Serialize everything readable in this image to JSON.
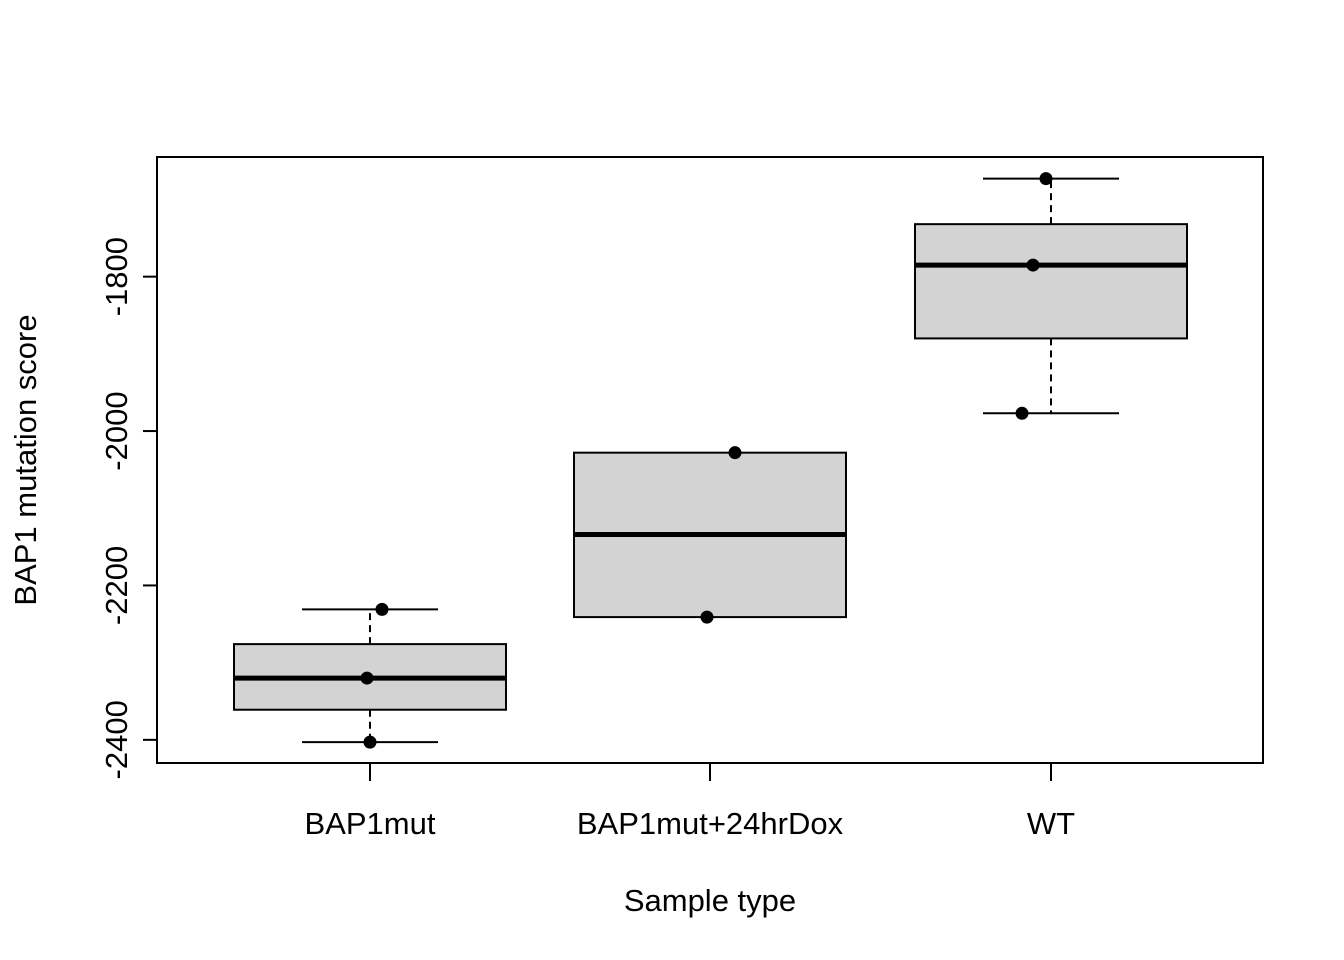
{
  "chart_data": {
    "type": "boxplot",
    "title": "",
    "xlabel": "Sample type",
    "ylabel": "BAP1 mutation score",
    "ylim": [
      -2430,
      -1645
    ],
    "y_ticks": [
      -2400,
      -2200,
      -2000,
      -1800
    ],
    "y_tick_labels": [
      "-2400",
      "-2200",
      "-2000",
      "-1800"
    ],
    "grid": false,
    "categories": [
      "BAP1mut",
      "BAP1mut+24hrDox",
      "WT"
    ],
    "boxes": [
      {
        "category": "BAP1mut",
        "whisker_low": -2403,
        "q1": -2361,
        "median": -2320,
        "q3": -2276,
        "whisker_high": -2231,
        "points": [
          -2231,
          -2320,
          -2403
        ]
      },
      {
        "category": "BAP1mut+24hrDox",
        "whisker_low": -2241,
        "q1": -2241,
        "median": -2134,
        "q3": -2028,
        "whisker_high": -2028,
        "points": [
          -2028,
          -2241
        ]
      },
      {
        "category": "WT",
        "whisker_low": -1977,
        "q1": -1880,
        "median": -1785,
        "q3": -1732,
        "whisker_high": -1673,
        "points": [
          -1673,
          -1785,
          -1977
        ]
      }
    ],
    "colors": {
      "box_fill": "#d3d3d3",
      "stroke": "#000000",
      "point": "#000000"
    }
  }
}
